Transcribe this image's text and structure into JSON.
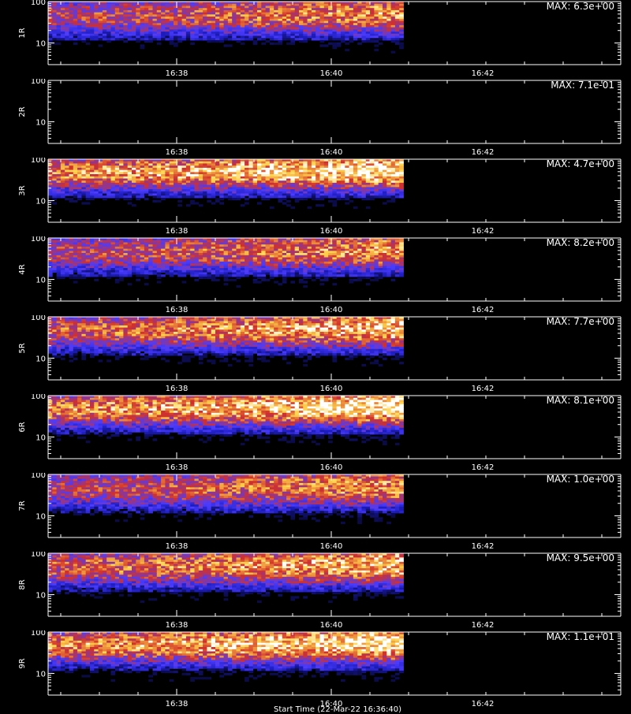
{
  "chart_data": {
    "type": "heatmap",
    "colormap": {
      "low": "#000000",
      "mid_low": "#1d1dbf",
      "mid": "#4b3cff",
      "mid_high": "#d2302a",
      "high": "#ffd34a",
      "peak": "#ffffff"
    },
    "x_tick_labels": [
      "16:38",
      "16:40",
      "16:42"
    ],
    "y_tick_labels": [
      "10",
      "100"
    ],
    "ylim": [
      3,
      100
    ],
    "y_scale": "log",
    "data_end_time": "16:41",
    "footer_text": "Start Time (22-Mar-22 16:36:40)",
    "panels": [
      {
        "label": "1R",
        "max_text": "MAX: 6.3e+00",
        "has_data": true
      },
      {
        "label": "2R",
        "max_text": "MAX: 7.1e-01",
        "has_data": false
      },
      {
        "label": "3R",
        "max_text": "MAX: 4.7e+00",
        "has_data": true
      },
      {
        "label": "4R",
        "max_text": "MAX: 8.2e+00",
        "has_data": true
      },
      {
        "label": "5R",
        "max_text": "MAX: 7.7e+00",
        "has_data": true
      },
      {
        "label": "6R",
        "max_text": "MAX: 8.1e+00",
        "has_data": true
      },
      {
        "label": "7R",
        "max_text": "MAX: 1.0e+00",
        "has_data": true
      },
      {
        "label": "8R",
        "max_text": "MAX: 9.5e+00",
        "has_data": true
      },
      {
        "label": "9R",
        "max_text": "MAX: 1.1e+01",
        "has_data": true
      }
    ]
  }
}
